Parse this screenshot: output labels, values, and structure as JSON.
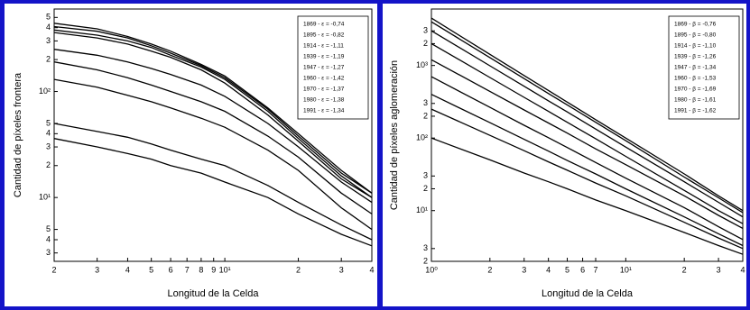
{
  "chart_data": [
    {
      "type": "line",
      "xlabel": "Longitud de la Celda",
      "ylabel": "Cantidad de píxeles frontera",
      "xscale": "log",
      "yscale": "log",
      "grid": false,
      "legend": "upper right",
      "color": "#000000",
      "xlim": [
        2,
        40
      ],
      "ylim": [
        2.5,
        600
      ],
      "xticks": [
        2,
        3,
        4,
        5,
        6,
        7,
        8,
        9,
        {
          "value": 10,
          "label": "10¹"
        },
        {
          "value": 20,
          "label": "2"
        },
        {
          "value": 30,
          "label": "3"
        },
        {
          "value": 40,
          "label": "4"
        }
      ],
      "yticks": [
        3,
        4,
        5,
        {
          "value": 10,
          "label": "10¹"
        },
        {
          "value": 20,
          "label": "2"
        },
        {
          "value": 30,
          "label": "3"
        },
        {
          "value": 40,
          "label": "4"
        },
        {
          "value": 50,
          "label": "5"
        },
        {
          "value": 100,
          "label": "10²"
        },
        {
          "value": 200,
          "label": "2"
        },
        {
          "value": 300,
          "label": "3"
        },
        {
          "value": 400,
          "label": "4"
        },
        {
          "value": 500,
          "label": "5"
        }
      ],
      "x": [
        2,
        3,
        4,
        5,
        6,
        8,
        10,
        15,
        20,
        30,
        40
      ],
      "series": [
        {
          "name": "1869 - ε = -0,74",
          "values": [
            440,
            390,
            330,
            280,
            240,
            180,
            140,
            70,
            40,
            18,
            11
          ]
        },
        {
          "name": "1895 - ε = -0,82",
          "values": [
            410,
            370,
            320,
            270,
            230,
            175,
            135,
            68,
            38,
            17,
            11
          ]
        },
        {
          "name": "1914 - ε = -1,11",
          "values": [
            380,
            340,
            300,
            260,
            220,
            170,
            130,
            65,
            36,
            16,
            10
          ]
        },
        {
          "name": "1939 - ε = -1,19",
          "values": [
            360,
            320,
            280,
            240,
            210,
            160,
            120,
            60,
            34,
            15,
            10
          ]
        },
        {
          "name": "1947 - ε = -1,27",
          "values": [
            250,
            220,
            190,
            165,
            145,
            115,
            90,
            50,
            30,
            14,
            9
          ]
        },
        {
          "name": "1960 - ε = -1,42",
          "values": [
            190,
            160,
            135,
            115,
            100,
            80,
            65,
            38,
            24,
            11,
            7
          ]
        },
        {
          "name": "1970 - ε = -1,37",
          "values": [
            130,
            110,
            92,
            80,
            70,
            56,
            46,
            28,
            18,
            8,
            5
          ]
        },
        {
          "name": "1980 - ε = -1,38",
          "values": [
            50,
            42,
            37,
            32,
            28,
            23,
            20,
            13,
            9,
            5.5,
            4
          ]
        },
        {
          "name": "1991 - ε = -1,34",
          "values": [
            36,
            30,
            26,
            23,
            20,
            17,
            14,
            10,
            7,
            4.5,
            3.5
          ]
        }
      ]
    },
    {
      "type": "line",
      "xlabel": "Longitud de la Celda",
      "ylabel": "Cantidad de píxeles aglomeración",
      "xscale": "log",
      "yscale": "log",
      "grid": false,
      "legend": "upper right",
      "color": "#000000",
      "xlim": [
        1,
        40
      ],
      "ylim": [
        2,
        6000
      ],
      "xticks": [
        {
          "value": 1,
          "label": "10⁰"
        },
        2,
        3,
        4,
        5,
        6,
        7,
        {
          "value": 10,
          "label": "10¹"
        },
        {
          "value": 20,
          "label": "2"
        },
        {
          "value": 30,
          "label": "3"
        },
        {
          "value": 40,
          "label": "4"
        }
      ],
      "yticks": [
        2,
        3,
        {
          "value": 10,
          "label": "10¹"
        },
        {
          "value": 20,
          "label": "2"
        },
        {
          "value": 30,
          "label": "3"
        },
        {
          "value": 100,
          "label": "10²"
        },
        {
          "value": 200,
          "label": "2"
        },
        {
          "value": 300,
          "label": "3"
        },
        {
          "value": 1000,
          "label": "10³"
        },
        {
          "value": 2000,
          "label": "2"
        },
        {
          "value": 3000,
          "label": "3"
        }
      ],
      "x": [
        1,
        2,
        3,
        4,
        5,
        7,
        10,
        20,
        30,
        40
      ],
      "series": [
        {
          "name": "1869 - β = -0,76",
          "values": [
            4500,
            1426,
            728,
            452,
            313,
            179,
            100,
            32,
            16,
            10
          ]
        },
        {
          "name": "1895 - β = -0,80",
          "values": [
            4000,
            1283,
            660,
            411,
            286,
            165,
            92,
            29,
            15,
            9.4
          ]
        },
        {
          "name": "1914 - β = -1,10",
          "values": [
            3000,
            990,
            517,
            326,
            229,
            133,
            75,
            25,
            13,
            8.2
          ]
        },
        {
          "name": "1939 - β = -1,26",
          "values": [
            2000,
            683,
            364,
            233,
            165,
            98,
            56,
            19,
            10,
            6.6
          ]
        },
        {
          "name": "1947 - β = -1,34",
          "values": [
            1200,
            440,
            244,
            161,
            117,
            71,
            43,
            16,
            8.6,
            5.7
          ]
        },
        {
          "name": "1960 - β = -1,53",
          "values": [
            700,
            265,
            150,
            101,
            74,
            46,
            28,
            11,
            6,
            4
          ]
        },
        {
          "name": "1970 - β = -1,69",
          "values": [
            400,
            163,
            96,
            66,
            49,
            32,
            20,
            8.2,
            4.8,
            3.3
          ]
        },
        {
          "name": "1980 - β = -1,61",
          "values": [
            250,
            109,
            67,
            47,
            36,
            24,
            16,
            6.9,
            4.2,
            3
          ]
        },
        {
          "name": "1991 - β = -1,62",
          "values": [
            100,
            50,
            33,
            25,
            20,
            14,
            10,
            5,
            3.3,
            2.5
          ]
        }
      ]
    }
  ]
}
